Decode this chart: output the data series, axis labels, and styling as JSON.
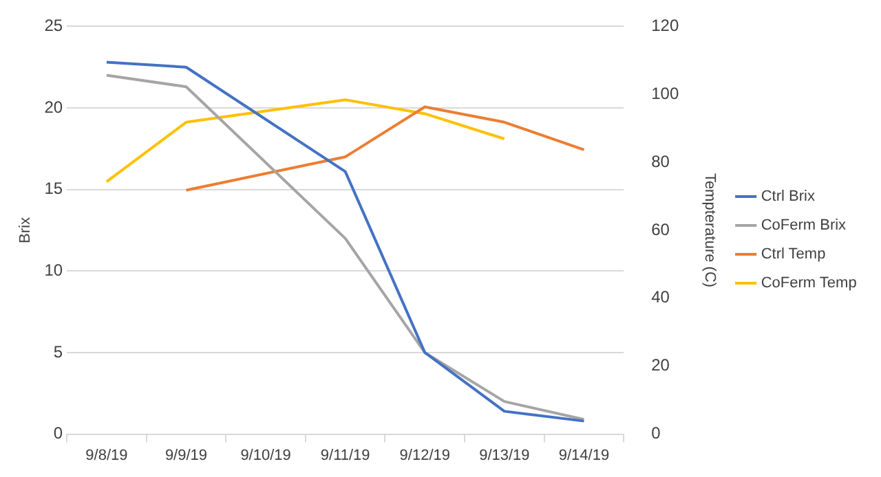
{
  "chart_data": {
    "type": "line",
    "categories": [
      "9/8/19",
      "9/9/19",
      "9/10/19",
      "9/11/19",
      "9/12/19",
      "9/13/19",
      "9/14/19"
    ],
    "ylabel": "Brix",
    "y2label": "Tempterature (C)",
    "ylim": [
      0,
      25
    ],
    "yticks": [
      0,
      5,
      10,
      15,
      20,
      25
    ],
    "y2lim": [
      0,
      120
    ],
    "y2ticks": [
      0,
      20,
      40,
      60,
      80,
      100,
      120
    ],
    "grid": "y",
    "legend": "right",
    "marker": "none",
    "line_style": "solid",
    "series": [
      {
        "name": "Ctrl Brix",
        "color": "#4472c4",
        "values": [
          22.8,
          22.5,
          null,
          16.1,
          5.0,
          1.4,
          0.8
        ]
      },
      {
        "name": "CoFerm Brix",
        "color": "#a5a5a5",
        "values": [
          22.0,
          21.3,
          null,
          12.0,
          5.0,
          2.0,
          0.9
        ]
      },
      {
        "name": "Ctrl Temp",
        "color": "#ed7d31",
        "axis": "y2",
        "values": [
          null,
          71.8,
          null,
          81.6,
          96.3,
          91.8,
          83.7
        ]
      },
      {
        "name": "CoFerm Temp",
        "color": "#ffc000",
        "axis": "y2",
        "values": [
          74.3,
          91.8,
          null,
          98.4,
          94.3,
          86.9,
          null
        ]
      }
    ]
  }
}
